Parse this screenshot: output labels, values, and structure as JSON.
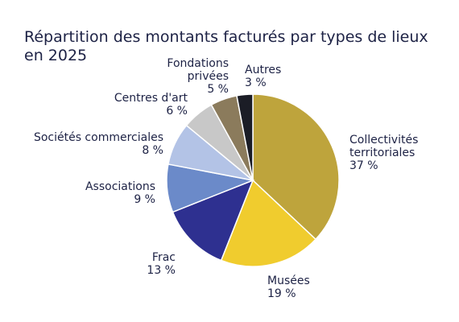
{
  "chart_data": {
    "type": "pie",
    "title": [
      "Répartition des montants facturés par types de lieux",
      "en 2025"
    ],
    "slices": [
      {
        "name": "Collectivités territoriales",
        "name_lines": [
          "Collectivités",
          "territoriales"
        ],
        "value": 37,
        "label": "37 %",
        "color": "#bea43c"
      },
      {
        "name": "Musées",
        "name_lines": [
          "Musées"
        ],
        "value": 19,
        "label": "19 %",
        "color": "#f0cc2e"
      },
      {
        "name": "Frac",
        "name_lines": [
          "Frac"
        ],
        "value": 13,
        "label": "13 %",
        "color": "#2e3090"
      },
      {
        "name": "Associations",
        "name_lines": [
          "Associations"
        ],
        "value": 9,
        "label": "9 %",
        "color": "#6b8ac9"
      },
      {
        "name": "Sociétés commerciales",
        "name_lines": [
          "Sociétés commerciales"
        ],
        "value": 8,
        "label": "8 %",
        "color": "#b3c3e6"
      },
      {
        "name": "Centres d'art",
        "name_lines": [
          "Centres d'art"
        ],
        "value": 6,
        "label": "6 %",
        "color": "#c8c8c8"
      },
      {
        "name": "Fondations privées",
        "name_lines": [
          "Fondations",
          "privées"
        ],
        "value": 5,
        "label": "5 %",
        "color": "#8b7b5c"
      },
      {
        "name": "Autres",
        "name_lines": [
          "Autres"
        ],
        "value": 3,
        "label": "3 %",
        "color": "#1b1d26"
      }
    ]
  }
}
